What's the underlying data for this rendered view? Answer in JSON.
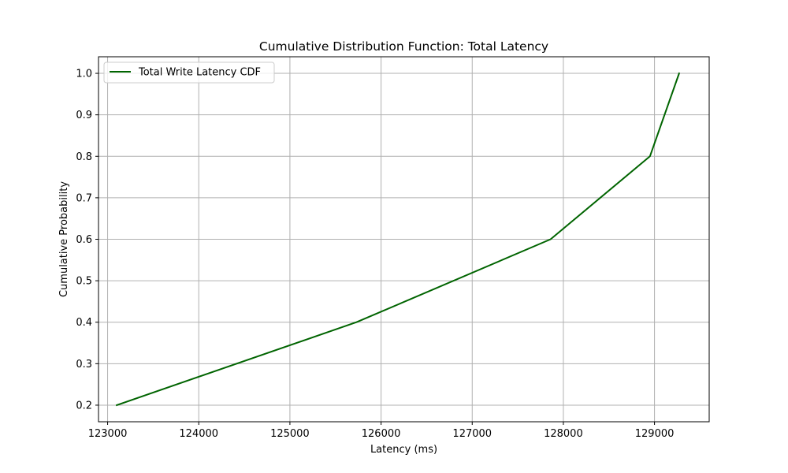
{
  "chart_data": {
    "type": "line",
    "title": "Cumulative Distribution Function: Total Latency",
    "xlabel": "Latency (ms)",
    "ylabel": "Cumulative Probability",
    "xlim": [
      122900,
      129600
    ],
    "ylim": [
      0.16,
      1.04
    ],
    "xticks": [
      123000,
      124000,
      125000,
      126000,
      127000,
      128000,
      129000
    ],
    "yticks": [
      0.2,
      0.3,
      0.4,
      0.5,
      0.6,
      0.7,
      0.8,
      0.9,
      1.0
    ],
    "grid": true,
    "legend_position": "top-left",
    "series": [
      {
        "name": "Total Write Latency CDF",
        "color": "#006400",
        "x": [
          123100,
          125730,
          127860,
          128950,
          129270
        ],
        "y": [
          0.2,
          0.4,
          0.6,
          0.8,
          1.0
        ]
      }
    ]
  }
}
